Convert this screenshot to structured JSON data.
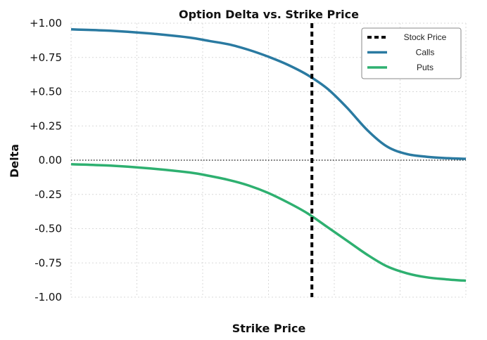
{
  "chart_data": {
    "type": "line",
    "title": "Option Delta vs. Strike Price",
    "xlabel": "Strike Price",
    "ylabel": "Delta",
    "ylim": [
      -1.0,
      1.0
    ],
    "xlim": [
      0,
      1
    ],
    "grid": true,
    "legend": "top-right",
    "x_tick_labels": [],
    "y_ticks": [
      {
        "value": 1.0,
        "label": "+1.00"
      },
      {
        "value": 0.75,
        "label": "+0.75"
      },
      {
        "value": 0.5,
        "label": "+0.50"
      },
      {
        "value": 0.25,
        "label": "+0.25"
      },
      {
        "value": 0.0,
        "label": "0.00"
      },
      {
        "value": -0.25,
        "label": "-0.25"
      },
      {
        "value": -0.5,
        "label": "-0.50"
      },
      {
        "value": -0.75,
        "label": "-0.75"
      },
      {
        "value": -1.0,
        "label": "-1.00"
      }
    ],
    "zero_line": true,
    "stock_price_x": 0.61,
    "x": [
      0.0,
      0.1,
      0.2,
      0.3,
      0.35,
      0.4,
      0.45,
      0.5,
      0.55,
      0.6,
      0.65,
      0.7,
      0.75,
      0.8,
      0.85,
      0.9,
      0.95,
      1.0
    ],
    "series": [
      {
        "name": "Calls",
        "color": "#2a7aa1",
        "values": [
          0.955,
          0.945,
          0.925,
          0.895,
          0.87,
          0.845,
          0.805,
          0.755,
          0.695,
          0.62,
          0.52,
          0.38,
          0.22,
          0.1,
          0.045,
          0.025,
          0.015,
          0.01
        ]
      },
      {
        "name": "Puts",
        "color": "#2eb070",
        "values": [
          -0.03,
          -0.04,
          -0.06,
          -0.09,
          -0.115,
          -0.145,
          -0.185,
          -0.24,
          -0.31,
          -0.39,
          -0.49,
          -0.59,
          -0.69,
          -0.775,
          -0.825,
          -0.855,
          -0.87,
          -0.88
        ]
      }
    ],
    "reference_lines": [
      {
        "name": "Stock Price",
        "color": "#000000",
        "style": "dashed"
      }
    ],
    "legend_entries": [
      {
        "label": "Stock Price",
        "color": "#000000",
        "style": "dashed"
      },
      {
        "label": "Calls",
        "color": "#2a7aa1",
        "style": "solid"
      },
      {
        "label": "Puts",
        "color": "#2eb070",
        "style": "solid"
      }
    ]
  }
}
